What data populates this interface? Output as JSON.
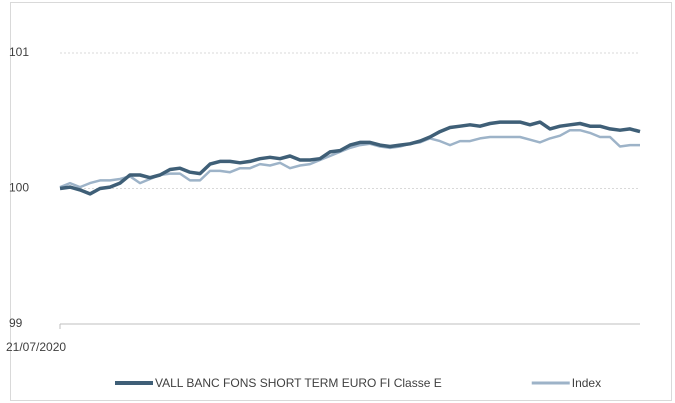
{
  "chart_data": {
    "type": "line",
    "categories": [
      "21/07/2020",
      null,
      null,
      null,
      null,
      null,
      null,
      null,
      null,
      null,
      null,
      null,
      null,
      null,
      null,
      null,
      null,
      null,
      null,
      null,
      null,
      null,
      null,
      null,
      null,
      null,
      null,
      null,
      null,
      null,
      null,
      null,
      null,
      null,
      null,
      null,
      null,
      null,
      null,
      null,
      null,
      null,
      null,
      null,
      null,
      null,
      null,
      null,
      null,
      null,
      null,
      null,
      null,
      null,
      null,
      null,
      null,
      null,
      null
    ],
    "series": [
      {
        "name": "VALL BANC FONS SHORT TERM EURO FI Classe E",
        "color": "#3f5f77",
        "values": [
          100.0,
          100.01,
          99.99,
          99.96,
          100.0,
          100.01,
          100.04,
          100.1,
          100.1,
          100.08,
          100.1,
          100.14,
          100.15,
          100.12,
          100.11,
          100.18,
          100.2,
          100.2,
          100.19,
          100.2,
          100.22,
          100.23,
          100.22,
          100.24,
          100.21,
          100.21,
          100.22,
          100.27,
          100.28,
          100.32,
          100.34,
          100.34,
          100.32,
          100.31,
          100.32,
          100.33,
          100.35,
          100.38,
          100.42,
          100.45,
          100.46,
          100.47,
          100.46,
          100.48,
          100.49,
          100.49,
          100.49,
          100.47,
          100.49,
          100.44,
          100.46,
          100.47,
          100.48,
          100.46,
          100.46,
          100.44,
          100.43,
          100.44,
          100.42
        ]
      },
      {
        "name": "Index",
        "color": "#9db3c8",
        "values": [
          100.01,
          100.04,
          100.01,
          100.04,
          100.06,
          100.06,
          100.07,
          100.09,
          100.04,
          100.07,
          100.1,
          100.11,
          100.11,
          100.06,
          100.06,
          100.13,
          100.13,
          100.12,
          100.15,
          100.15,
          100.18,
          100.17,
          100.19,
          100.15,
          100.17,
          100.18,
          100.21,
          100.24,
          100.27,
          100.3,
          100.32,
          100.33,
          100.31,
          100.3,
          100.31,
          100.33,
          100.34,
          100.37,
          100.35,
          100.32,
          100.35,
          100.35,
          100.37,
          100.38,
          100.38,
          100.38,
          100.38,
          100.36,
          100.34,
          100.37,
          100.39,
          100.43,
          100.43,
          100.41,
          100.38,
          100.38,
          100.31,
          100.32,
          100.32
        ]
      }
    ],
    "ylim": [
      99,
      101
    ],
    "yticks": [
      99,
      100,
      101
    ],
    "grid": true,
    "legend": "bottom"
  }
}
